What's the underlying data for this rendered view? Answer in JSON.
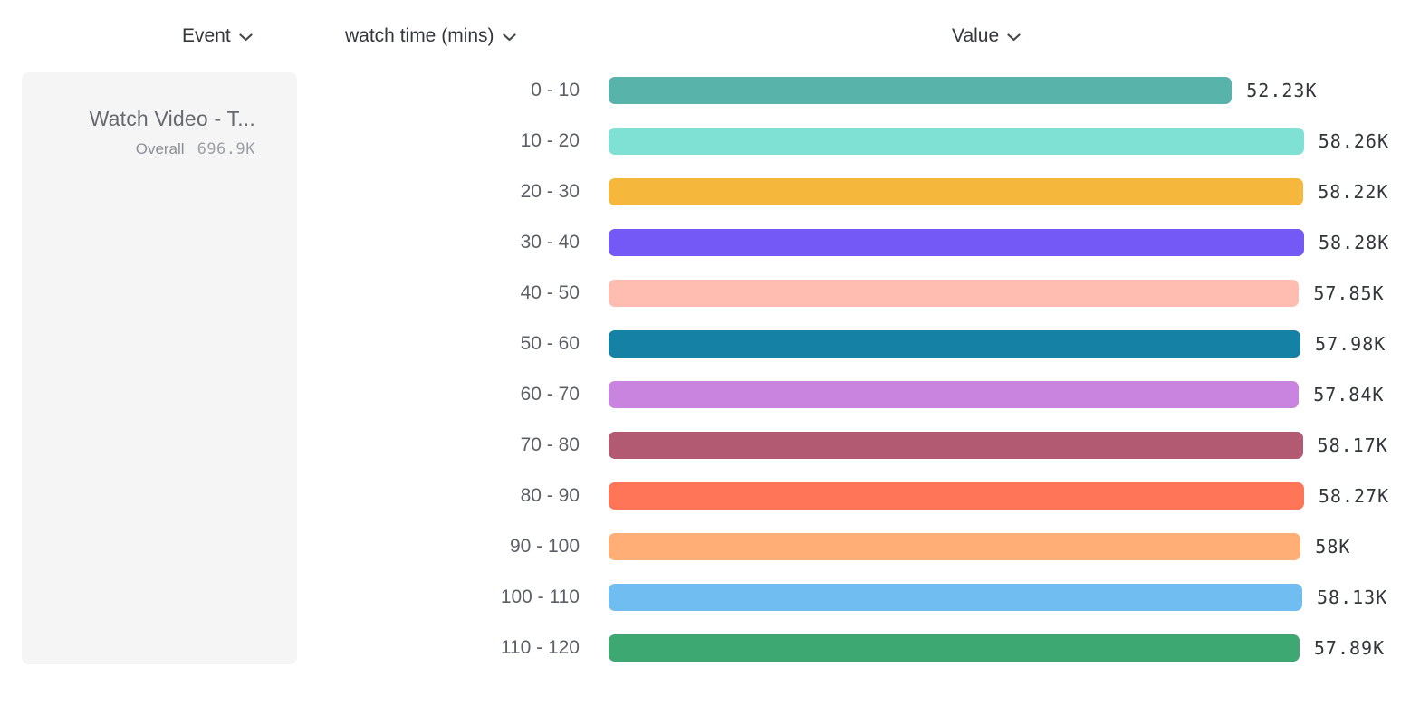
{
  "headers": {
    "event": {
      "label": "Event",
      "icon": "chevron-down-icon"
    },
    "segment": {
      "label": "watch time (mins)",
      "icon": "chevron-down-icon"
    },
    "value": {
      "label": "Value",
      "icon": "chevron-down-icon"
    }
  },
  "event_card": {
    "title": "Watch Video - T...",
    "overall_label": "Overall",
    "overall_value": "696.9K"
  },
  "chart_data": {
    "type": "bar",
    "orientation": "horizontal",
    "title": "",
    "xlabel": "Value",
    "ylabel": "watch time (mins)",
    "xlim": [
      0,
      58280
    ],
    "grid": false,
    "legend": false,
    "categories": [
      "0 - 10",
      "10 - 20",
      "20 - 30",
      "30 - 40",
      "40 - 50",
      "50 - 60",
      "60 - 70",
      "70 - 80",
      "80 - 90",
      "90 - 100",
      "100 - 110",
      "110 - 120"
    ],
    "values": [
      52230,
      58260,
      58220,
      58280,
      57850,
      57980,
      57840,
      58170,
      58270,
      58000,
      58130,
      57890
    ],
    "value_labels": [
      "52.23K",
      "58.26K",
      "58.22K",
      "58.28K",
      "57.85K",
      "57.98K",
      "57.84K",
      "58.17K",
      "58.27K",
      "58K",
      "58.13K",
      "57.89K"
    ],
    "bar_colors": [
      "#58B4AB",
      "#7FE0D4",
      "#F5B83D",
      "#7459F7",
      "#FFBCB0",
      "#1581A4",
      "#C884DE",
      "#B25A72",
      "#FF7558",
      "#FFAF76",
      "#70BDF2",
      "#3EA873"
    ]
  },
  "style": {
    "card_background": "#f5f5f6",
    "header_text_color": "#33373b",
    "bucket_label_color": "#5c6066",
    "value_label_color": "#33373b"
  }
}
